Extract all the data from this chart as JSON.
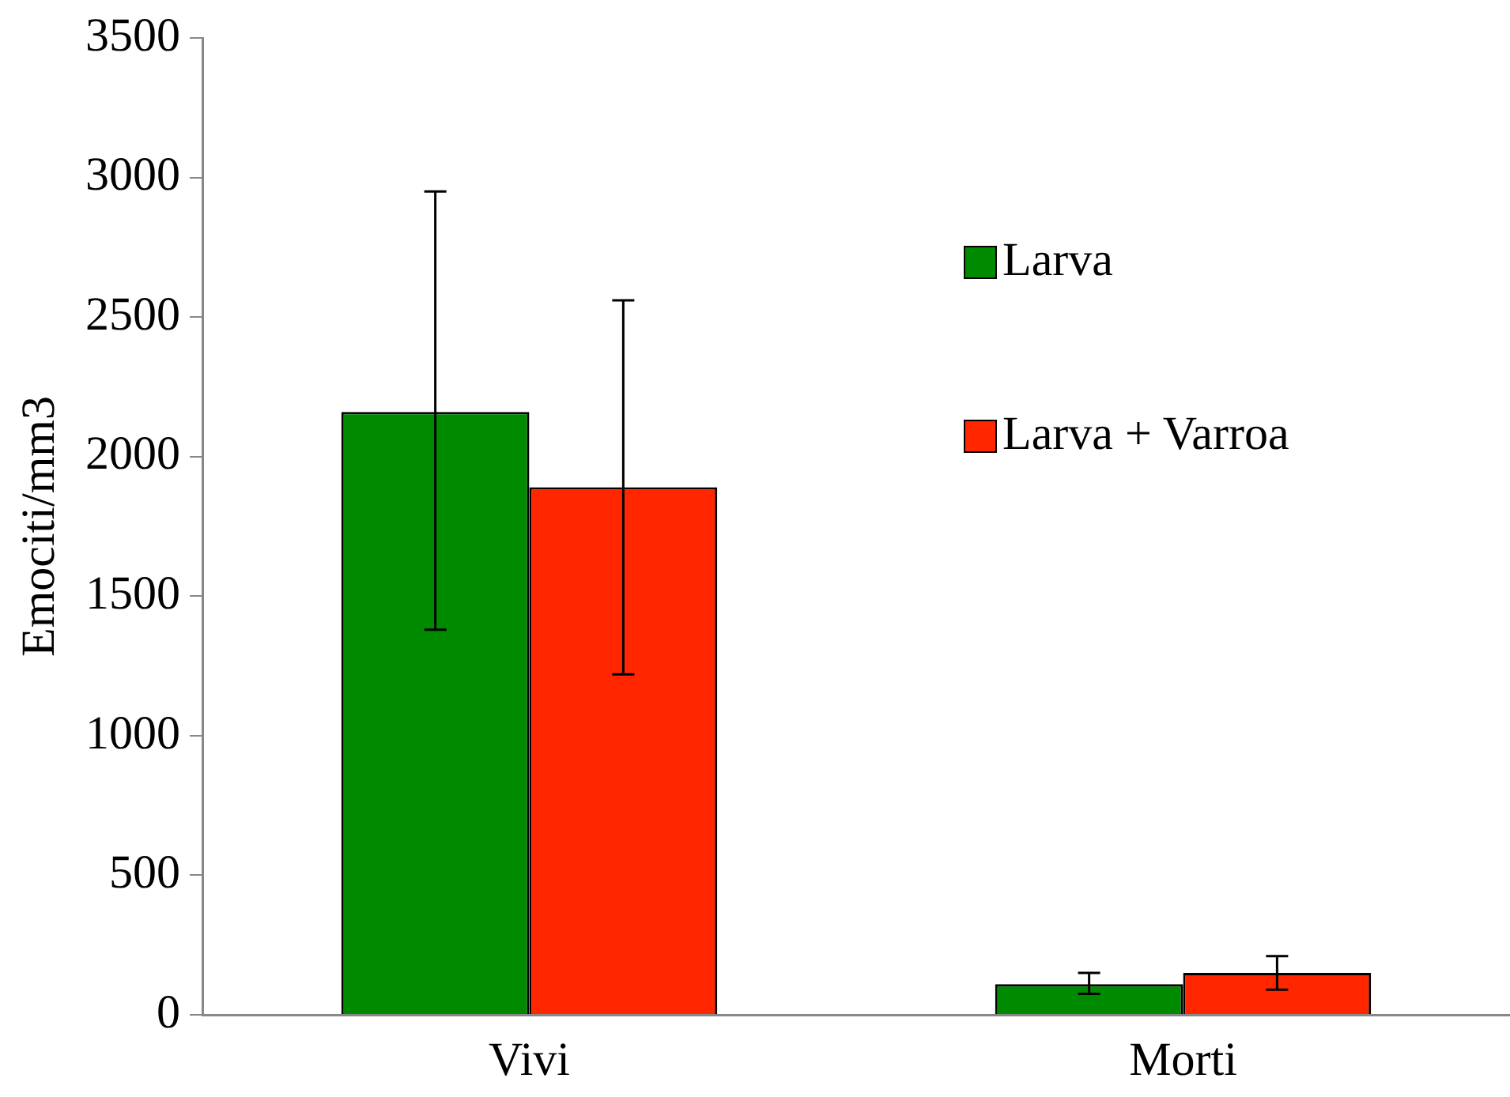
{
  "chart_data": {
    "type": "bar",
    "ylabel": "Emociti/mm3",
    "categories": [
      "Vivi",
      "Morti"
    ],
    "series": [
      {
        "name": "Larva",
        "color": "#008a00",
        "values": [
          2160,
          110
        ],
        "errors": [
          [
            1380,
            2950
          ],
          [
            75,
            150
          ]
        ]
      },
      {
        "name": "Larva + Varroa",
        "color": "#ff2600",
        "values": [
          1890,
          150
        ],
        "errors": [
          [
            1220,
            2560
          ],
          [
            90,
            210
          ]
        ]
      }
    ],
    "ylim": [
      0,
      3500
    ],
    "yticks": [
      0,
      500,
      1000,
      1500,
      2000,
      2500,
      3000,
      3500
    ],
    "grid": false,
    "legend": "top right"
  }
}
